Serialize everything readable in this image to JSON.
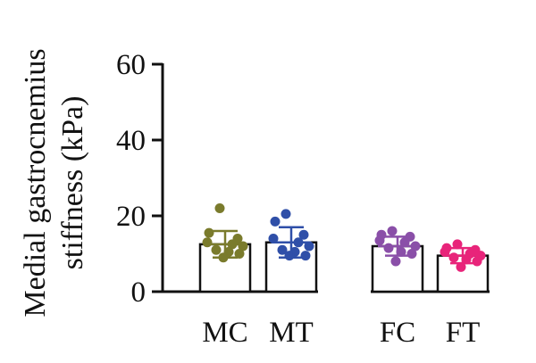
{
  "chart_data": {
    "type": "bar",
    "ylabel_lines": [
      "Medial gastrocnemius",
      "stiffness (kPa)"
    ],
    "ylim": [
      0,
      60
    ],
    "yticks": [
      0,
      20,
      40,
      60
    ],
    "categories": [
      "MC",
      "MT",
      "FC",
      "FT"
    ],
    "values": [
      12.5,
      13.0,
      12.0,
      9.5
    ],
    "errors": [
      3.5,
      4.0,
      2.5,
      2.0
    ],
    "colors": [
      "#7a7b2c",
      "#2f4fa8",
      "#8a4fa8",
      "#e8247a"
    ],
    "points": [
      [
        22,
        15.5,
        14.0,
        13.0,
        12.5,
        12.0,
        11.0,
        10.5,
        10.0,
        9.0
      ],
      [
        20.5,
        18.5,
        15.0,
        14.0,
        13.0,
        12.0,
        11.0,
        10.5,
        9.5,
        9.5
      ],
      [
        16.0,
        15.0,
        14.5,
        13.5,
        13.0,
        12.0,
        11.5,
        10.5,
        10.0,
        8.0
      ],
      [
        12.5,
        11.5,
        11.0,
        10.5,
        10.0,
        9.5,
        9.0,
        8.5,
        8.0,
        6.5
      ]
    ],
    "grid": false,
    "legend": "none"
  }
}
